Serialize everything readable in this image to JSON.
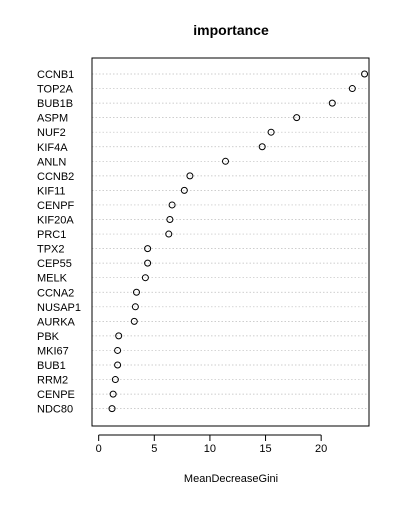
{
  "chart_data": {
    "type": "scatter",
    "title": "importance",
    "xlabel": "MeanDecreaseGini",
    "ylabel": "",
    "xlim": [
      -0.6,
      24.3
    ],
    "xticks": [
      0,
      5,
      10,
      15,
      20
    ],
    "grid": true,
    "labels": [
      "CCNB1",
      "TOP2A",
      "BUB1B",
      "ASPM",
      "NUF2",
      "KIF4A",
      "ANLN",
      "CCNB2",
      "KIF11",
      "CENPF",
      "KIF20A",
      "PRC1",
      "TPX2",
      "CEP55",
      "MELK",
      "CCNA2",
      "NUSAP1",
      "AURKA",
      "PBK",
      "MKI67",
      "BUB1",
      "RRM2",
      "CENPE",
      "NDC80"
    ],
    "values": [
      23.9,
      22.8,
      21.0,
      17.8,
      15.5,
      14.7,
      11.4,
      8.2,
      7.7,
      6.6,
      6.4,
      6.3,
      4.4,
      4.4,
      4.2,
      3.4,
      3.3,
      3.2,
      1.8,
      1.7,
      1.7,
      1.5,
      1.3,
      1.2
    ]
  }
}
